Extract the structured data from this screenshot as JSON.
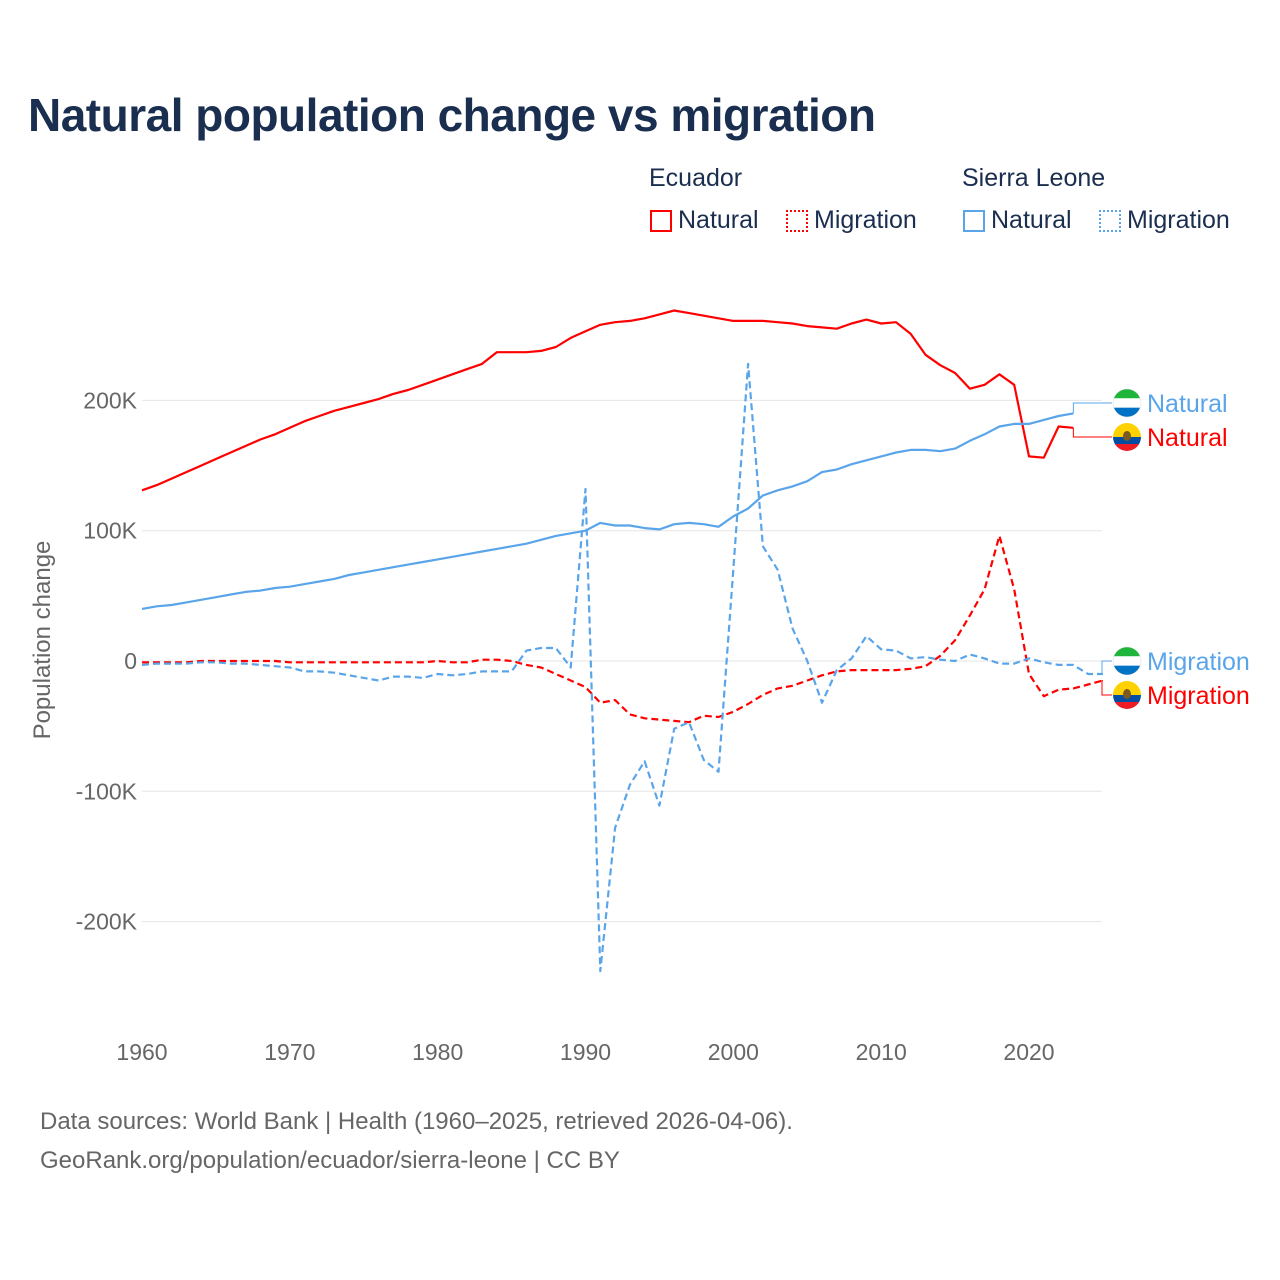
{
  "chart_data": {
    "type": "line",
    "title": "Natural population change vs migration",
    "ylabel": "Population change",
    "xlabel": "",
    "xlim": [
      1960,
      2025
    ],
    "ylim": [
      -280000,
      280000
    ],
    "x_ticks": [
      "1960",
      "1970",
      "1980",
      "1990",
      "2000",
      "2010",
      "2020"
    ],
    "y_ticks": [
      {
        "v": 200000,
        "label": "200K"
      },
      {
        "v": 100000,
        "label": "100K"
      },
      {
        "v": 0,
        "label": "0"
      },
      {
        "v": -100000,
        "label": "-100K"
      },
      {
        "v": -200000,
        "label": "-200K"
      }
    ],
    "grid": true,
    "legend": {
      "position": "top-right",
      "groups": [
        {
          "country": "Ecuador",
          "items": [
            "Natural",
            "Migration"
          ],
          "color": "#ff0000"
        },
        {
          "country": "Sierra Leone",
          "items": [
            "Natural",
            "Migration"
          ],
          "color": "#5aa5ea"
        }
      ]
    },
    "series": [
      {
        "name": "Ecuador Natural",
        "country": "Ecuador",
        "kind": "Natural",
        "color": "#ff0000",
        "dash": false,
        "start": 1960,
        "values": [
          131,
          135,
          140,
          145,
          150,
          155,
          160,
          165,
          170,
          174,
          179,
          184,
          188,
          192,
          195,
          198,
          201,
          205,
          208,
          212,
          216,
          220,
          224,
          228,
          237,
          237,
          237,
          238,
          241,
          248,
          253,
          258,
          260,
          261,
          263,
          266,
          269,
          267,
          265,
          263,
          261,
          261,
          261,
          260,
          259,
          257,
          256,
          255,
          259,
          262,
          259,
          260,
          251,
          235,
          227,
          221,
          209,
          212,
          220,
          212,
          157,
          156,
          180,
          179
        ]
      },
      {
        "name": "Ecuador Migration",
        "country": "Ecuador",
        "kind": "Migration",
        "color": "#ff0000",
        "dash": true,
        "start": 1960,
        "values": [
          -1,
          -1,
          -1,
          -1,
          0,
          0,
          0,
          0,
          0,
          0,
          -1,
          -1,
          -1,
          -1,
          -1,
          -1,
          -1,
          -1,
          -1,
          -1,
          0,
          -1,
          -1,
          1,
          1,
          0,
          -3,
          -5,
          -10,
          -15,
          -20,
          -32,
          -30,
          -41,
          -44,
          -45,
          -46,
          -47,
          -42,
          -43,
          -39,
          -33,
          -26,
          -21,
          -19,
          -15,
          -11,
          -8,
          -7,
          -7,
          -7,
          -7,
          -6,
          -4,
          4,
          16,
          35,
          55,
          96,
          55,
          -10,
          -27,
          -22,
          -21,
          -18,
          -15
        ]
      },
      {
        "name": "Sierra Leone Natural",
        "country": "Sierra Leone",
        "kind": "Natural",
        "color": "#5aa5ea",
        "dash": false,
        "start": 1960,
        "values": [
          40,
          42,
          43,
          45,
          47,
          49,
          51,
          53,
          54,
          56,
          57,
          59,
          61,
          63,
          66,
          68,
          70,
          72,
          74,
          76,
          78,
          80,
          82,
          84,
          86,
          88,
          90,
          93,
          96,
          98,
          100,
          106,
          104,
          104,
          102,
          101,
          105,
          106,
          105,
          103,
          111,
          117,
          127,
          131,
          134,
          138,
          145,
          147,
          151,
          154,
          157,
          160,
          162,
          162,
          161,
          163,
          169,
          174,
          180,
          182,
          182,
          185,
          188,
          190
        ]
      },
      {
        "name": "Sierra Leone Migration",
        "country": "Sierra Leone",
        "kind": "Migration",
        "color": "#5aa5ea",
        "dash": true,
        "start": 1960,
        "values": [
          -3,
          -2,
          -2,
          -2,
          -1,
          -1,
          -2,
          -2,
          -3,
          -4,
          -5,
          -8,
          -8,
          -9,
          -11,
          -13,
          -15,
          -12,
          -12,
          -13,
          -10,
          -11,
          -10,
          -8,
          -8,
          -8,
          8,
          10,
          10,
          -5,
          132,
          -238,
          -128,
          -95,
          -77,
          -111,
          -52,
          -47,
          -76,
          -85,
          70,
          228,
          88,
          70,
          25,
          0,
          -32,
          -7,
          2,
          19,
          9,
          8,
          2,
          3,
          1,
          0,
          5,
          2,
          -2,
          -2,
          2,
          -1,
          -3,
          -3,
          -10,
          -10
        ]
      }
    ],
    "units_note": "values in thousands",
    "end_labels": [
      {
        "text": "Natural",
        "series": "Sierra Leone Natural"
      },
      {
        "text": "Natural",
        "series": "Ecuador Natural"
      },
      {
        "text": "Migration",
        "series": "Sierra Leone Migration"
      },
      {
        "text": "Migration",
        "series": "Ecuador Migration"
      }
    ]
  },
  "legend_text": {
    "ecuador": "Ecuador",
    "sierra_leone": "Sierra Leone",
    "natural": "Natural",
    "migration": "Migration"
  },
  "footer": {
    "line1": "Data sources: World Bank | Health (1960–2025, retrieved 2026-04-06).",
    "line2": "GeoRank.org/population/ecuador/sierra-leone | CC BY"
  }
}
